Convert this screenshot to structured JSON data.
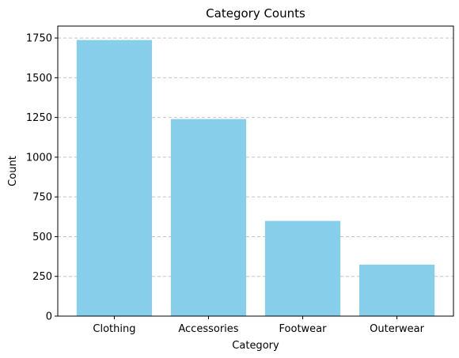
{
  "chart_data": {
    "type": "bar",
    "title": "Category Counts",
    "xlabel": "Category",
    "ylabel": "Count",
    "categories": [
      "Clothing",
      "Accessories",
      "Footwear",
      "Outerwear"
    ],
    "values": [
      1737,
      1240,
      599,
      324
    ],
    "ylim": [
      0,
      1825
    ],
    "yticks": [
      0,
      250,
      500,
      750,
      1000,
      1250,
      1500,
      1750
    ],
    "grid": "y-dashed",
    "colors": {
      "bar": "#87CEEB",
      "grid": "#c4c4c4",
      "axis": "#000000",
      "background": "#ffffff"
    }
  }
}
